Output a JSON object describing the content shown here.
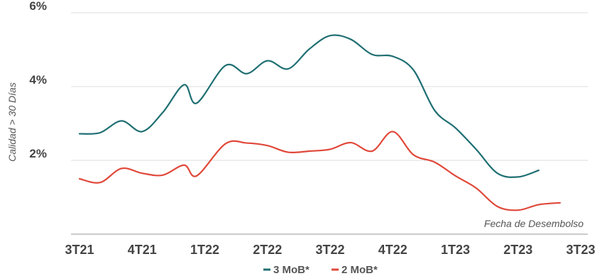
{
  "chart_data": {
    "type": "line",
    "title": "",
    "xlabel": "Fecha de Desembolso",
    "ylabel": "Calidad > 30 Días",
    "categories": [
      "3T21",
      "4T21",
      "1T22",
      "2T22",
      "3T22",
      "4T22",
      "1T23",
      "2T23",
      "3T23"
    ],
    "x_domain": [
      0,
      8
    ],
    "ylim": [
      0,
      6
    ],
    "y_ticks": [
      {
        "value": 2,
        "label": "2%"
      },
      {
        "value": 4,
        "label": "4%"
      },
      {
        "value": 6,
        "label": "6%"
      }
    ],
    "grid": "horizontal",
    "legend_position": "bottom",
    "series": [
      {
        "name": "3 MoB*",
        "color": "#1f6f73",
        "points": [
          [
            0.0,
            2.72
          ],
          [
            0.33,
            2.75
          ],
          [
            0.67,
            3.07
          ],
          [
            1.0,
            2.78
          ],
          [
            1.33,
            3.3
          ],
          [
            1.67,
            4.05
          ],
          [
            1.87,
            3.55
          ],
          [
            2.33,
            4.57
          ],
          [
            2.67,
            4.35
          ],
          [
            3.0,
            4.7
          ],
          [
            3.33,
            4.48
          ],
          [
            3.67,
            5.02
          ],
          [
            4.0,
            5.38
          ],
          [
            4.33,
            5.28
          ],
          [
            4.67,
            4.87
          ],
          [
            5.0,
            4.82
          ],
          [
            5.33,
            4.45
          ],
          [
            5.67,
            3.35
          ],
          [
            6.0,
            2.88
          ],
          [
            6.33,
            2.3
          ],
          [
            6.67,
            1.65
          ],
          [
            7.0,
            1.55
          ],
          [
            7.33,
            1.73
          ]
        ]
      },
      {
        "name": "2 MoB*",
        "color": "#e0483a",
        "points": [
          [
            0.0,
            1.5
          ],
          [
            0.33,
            1.4
          ],
          [
            0.67,
            1.78
          ],
          [
            1.0,
            1.65
          ],
          [
            1.33,
            1.6
          ],
          [
            1.67,
            1.87
          ],
          [
            1.87,
            1.58
          ],
          [
            2.33,
            2.45
          ],
          [
            2.67,
            2.47
          ],
          [
            3.0,
            2.4
          ],
          [
            3.33,
            2.22
          ],
          [
            3.67,
            2.25
          ],
          [
            4.0,
            2.3
          ],
          [
            4.33,
            2.48
          ],
          [
            4.67,
            2.25
          ],
          [
            5.0,
            2.78
          ],
          [
            5.33,
            2.15
          ],
          [
            5.67,
            1.95
          ],
          [
            6.0,
            1.58
          ],
          [
            6.33,
            1.25
          ],
          [
            6.67,
            0.75
          ],
          [
            7.0,
            0.65
          ],
          [
            7.33,
            0.8
          ],
          [
            7.67,
            0.85
          ]
        ]
      }
    ]
  }
}
